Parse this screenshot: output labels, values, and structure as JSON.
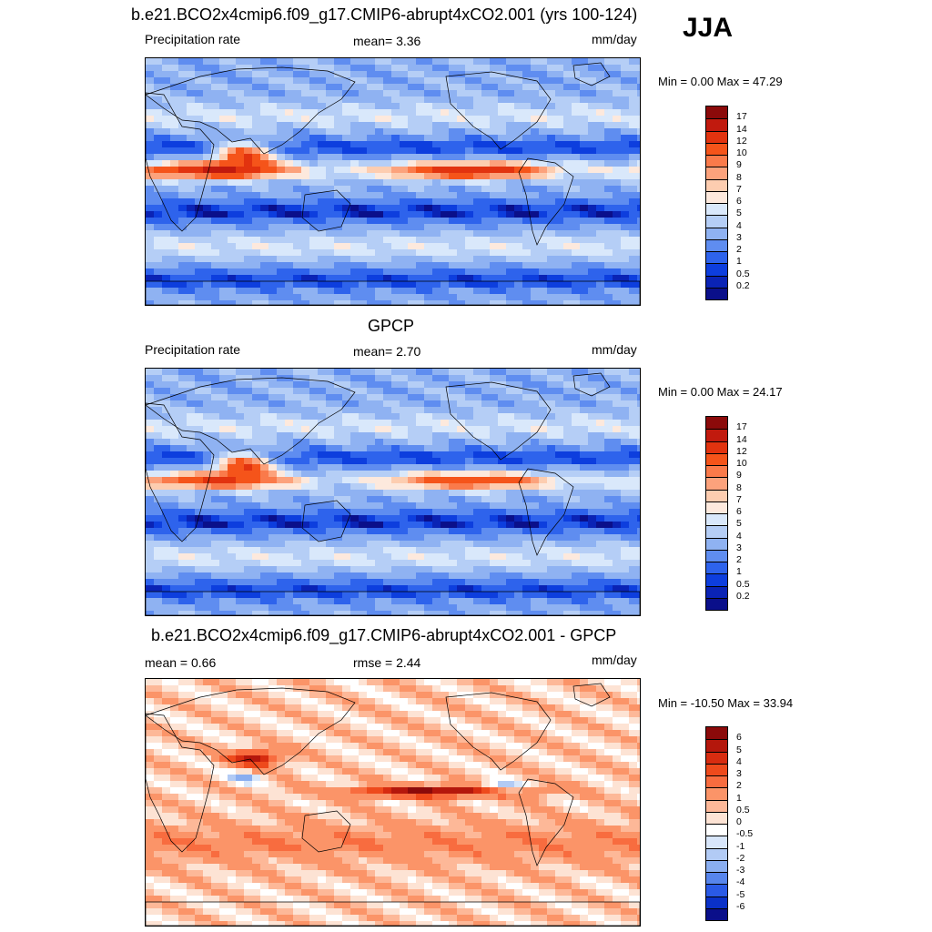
{
  "season": "JJA",
  "panels": [
    {
      "title": "b.e21.BCO2x4cmip6.f09_g17.CMIP6-abrupt4xCO2.001 (yrs 100-124)",
      "left_label": "Precipitation rate",
      "center_label": "mean=   3.36",
      "units": "mm/day",
      "minmax": "Min =   0.00 Max =  47.29",
      "levels": [
        "17",
        "14",
        "12",
        "10",
        "9",
        "8",
        "7",
        "6",
        "5",
        "4",
        "3",
        "2",
        "1",
        "0.5",
        "0.2"
      ],
      "colors": [
        "#8b0a0a",
        "#c11a0e",
        "#e2330f",
        "#f5541a",
        "#fa7a4a",
        "#fca27c",
        "#fdcdb0",
        "#fde9dd",
        "#d9e8fb",
        "#b5cef6",
        "#8fb2f2",
        "#5f8df0",
        "#2e63ec",
        "#0d3ede",
        "#0a23b5",
        "#0a0f8a"
      ]
    },
    {
      "title": "GPCP",
      "left_label": "Precipitation rate",
      "center_label": "mean=   2.70",
      "units": "mm/day",
      "minmax": "Min =   0.00 Max =  24.17",
      "levels": [
        "17",
        "14",
        "12",
        "10",
        "9",
        "8",
        "7",
        "6",
        "5",
        "4",
        "3",
        "2",
        "1",
        "0.5",
        "0.2"
      ],
      "colors": [
        "#8b0a0a",
        "#c11a0e",
        "#e2330f",
        "#f5541a",
        "#fa7a4a",
        "#fca27c",
        "#fdcdb0",
        "#fde9dd",
        "#d9e8fb",
        "#b5cef6",
        "#8fb2f2",
        "#5f8df0",
        "#2e63ec",
        "#0d3ede",
        "#0a23b5",
        "#0a0f8a"
      ]
    },
    {
      "title": "b.e21.BCO2x4cmip6.f09_g17.CMIP6-abrupt4xCO2.001 - GPCP",
      "left_label": "mean =   0.66",
      "center_label": "rmse =   2.44",
      "units": "mm/day",
      "minmax": "Min = -10.50 Max =  33.94",
      "levels": [
        "6",
        "5",
        "4",
        "3",
        "2",
        "1",
        "0.5",
        "0",
        "-0.5",
        "-1",
        "-2",
        "-3",
        "-4",
        "-5",
        "-6"
      ],
      "colors": [
        "#8b0a0a",
        "#b4170c",
        "#d72c10",
        "#ee4a1c",
        "#f86c3f",
        "#fb9468",
        "#fdb898",
        "#fde3d4",
        "#ffffff",
        "#d8e6fa",
        "#b2cbf5",
        "#8aaef0",
        "#5785ec",
        "#2a5ae6",
        "#0a31c8",
        "#0a0f8a"
      ]
    }
  ],
  "chart_data": [
    {
      "type": "heatmap",
      "title": "b.e21.BCO2x4cmip6.f09_g17.CMIP6-abrupt4xCO2.001 (yrs 100-124)",
      "subtitle": "Precipitation rate",
      "units": "mm/day",
      "mean": 3.36,
      "min": 0.0,
      "max": 47.29,
      "contour_levels": [
        0.2,
        0.5,
        1,
        2,
        3,
        4,
        5,
        6,
        7,
        8,
        9,
        10,
        12,
        14,
        17
      ]
    },
    {
      "type": "heatmap",
      "title": "GPCP",
      "subtitle": "Precipitation rate",
      "units": "mm/day",
      "mean": 2.7,
      "min": 0.0,
      "max": 24.17,
      "contour_levels": [
        0.2,
        0.5,
        1,
        2,
        3,
        4,
        5,
        6,
        7,
        8,
        9,
        10,
        12,
        14,
        17
      ]
    },
    {
      "type": "heatmap",
      "title": "b.e21.BCO2x4cmip6.f09_g17.CMIP6-abrupt4xCO2.001 - GPCP",
      "units": "mm/day",
      "mean": 0.66,
      "rmse": 2.44,
      "min": -10.5,
      "max": 33.94,
      "contour_levels": [
        -6,
        -5,
        -4,
        -3,
        -2,
        -1,
        -0.5,
        0,
        0.5,
        1,
        2,
        3,
        4,
        5,
        6
      ]
    }
  ]
}
